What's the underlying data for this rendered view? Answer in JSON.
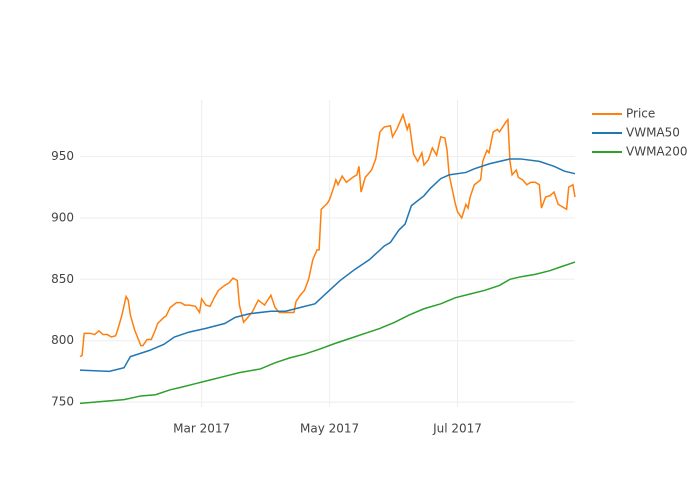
{
  "chart_data": {
    "type": "line",
    "xlim": [
      2,
      238
    ],
    "xticks": [
      {
        "value": 60,
        "label": "Mar 2017"
      },
      {
        "value": 121,
        "label": "May 2017"
      },
      {
        "value": 182,
        "label": "Jul 2017"
      }
    ],
    "ylim": [
      746,
      996
    ],
    "yticks": [
      750,
      800,
      850,
      900,
      950
    ],
    "grid": true,
    "legend": "top-right",
    "series": [
      {
        "name": "Price",
        "color": "#ff7f0e",
        "x": [
          2,
          3,
          4,
          7,
          9,
          11,
          13,
          15,
          17,
          19,
          20,
          22,
          24,
          25,
          26,
          28,
          31,
          32,
          34,
          36,
          38,
          39,
          42,
          43,
          45,
          48,
          50,
          52,
          54,
          57,
          59,
          60,
          62,
          64,
          66,
          68,
          71,
          73,
          75,
          77,
          78,
          80,
          82,
          84,
          87,
          90,
          93,
          95,
          97,
          100,
          102,
          104,
          105,
          107,
          109,
          111,
          113,
          115,
          116,
          117,
          120,
          121,
          123,
          124,
          125,
          127,
          129,
          132,
          134,
          135,
          136,
          138,
          141,
          143,
          145,
          147,
          150,
          151,
          153,
          155,
          156,
          158,
          159,
          161,
          163,
          165,
          166,
          168,
          170,
          172,
          174,
          176,
          177,
          178,
          179,
          181,
          182,
          184,
          186,
          187,
          188,
          190,
          193,
          194,
          196,
          197,
          199,
          201,
          202,
          205,
          206,
          207,
          208,
          210,
          211,
          213,
          215,
          217,
          219,
          221,
          222,
          224,
          226,
          228,
          230,
          232,
          234,
          235,
          237,
          238
        ],
        "values": [
          787,
          788,
          806,
          806,
          805,
          808,
          805,
          805,
          803,
          804,
          809,
          821,
          836,
          833,
          821,
          809,
          796,
          796,
          801,
          801,
          809,
          814,
          819,
          820,
          827,
          831,
          831,
          829,
          829,
          828,
          823,
          834,
          829,
          828,
          835,
          841,
          845,
          847,
          851,
          849,
          829,
          815,
          819,
          823,
          833,
          829,
          837,
          827,
          823,
          823,
          823,
          823,
          832,
          837,
          841,
          850,
          866,
          874,
          874,
          907,
          912,
          915,
          925,
          931,
          927,
          934,
          929,
          933,
          935,
          942,
          921,
          933,
          939,
          948,
          970,
          974,
          975,
          966,
          972,
          980,
          984,
          972,
          977,
          952,
          946,
          953,
          943,
          947,
          957,
          951,
          966,
          965,
          955,
          935,
          927,
          911,
          905,
          900,
          911,
          908,
          917,
          927,
          931,
          946,
          955,
          953,
          970,
          972,
          970,
          978,
          980,
          946,
          935,
          939,
          933,
          931,
          927,
          929,
          929,
          927,
          908,
          917,
          918,
          921,
          911,
          909,
          907,
          925,
          927,
          917
        ]
      },
      {
        "name": "VWMA50",
        "color": "#1f77b4",
        "x": [
          2,
          16,
          23,
          26,
          35,
          42,
          47,
          54,
          62,
          71,
          76,
          83,
          93,
          100,
          107,
          114,
          119,
          126,
          133,
          140,
          147,
          150,
          154,
          157,
          160,
          166,
          169,
          174,
          178,
          186,
          190,
          197,
          207,
          212,
          221,
          228,
          233,
          238
        ],
        "values": [
          776,
          775,
          778,
          787,
          792,
          797,
          803,
          807,
          810,
          814,
          819,
          822,
          824,
          824,
          827,
          830,
          838,
          849,
          858,
          866,
          877,
          880,
          890,
          895,
          910,
          918,
          924,
          932,
          935,
          937,
          940,
          944,
          948,
          948,
          946,
          942,
          938,
          936
        ]
      },
      {
        "name": "VWMA200",
        "color": "#2ca02c",
        "x": [
          2,
          23,
          31,
          38,
          45,
          50,
          57,
          64,
          71,
          78,
          88,
          95,
          102,
          109,
          116,
          124,
          131,
          138,
          145,
          152,
          159,
          166,
          174,
          181,
          188,
          195,
          202,
          207,
          212,
          219,
          226,
          231,
          238
        ],
        "values": [
          749,
          752,
          755,
          756,
          760,
          762,
          765,
          768,
          771,
          774,
          777,
          782,
          786,
          789,
          793,
          798,
          802,
          806,
          810,
          815,
          821,
          826,
          830,
          835,
          838,
          841,
          845,
          850,
          852,
          854,
          857,
          860,
          864
        ]
      }
    ]
  }
}
